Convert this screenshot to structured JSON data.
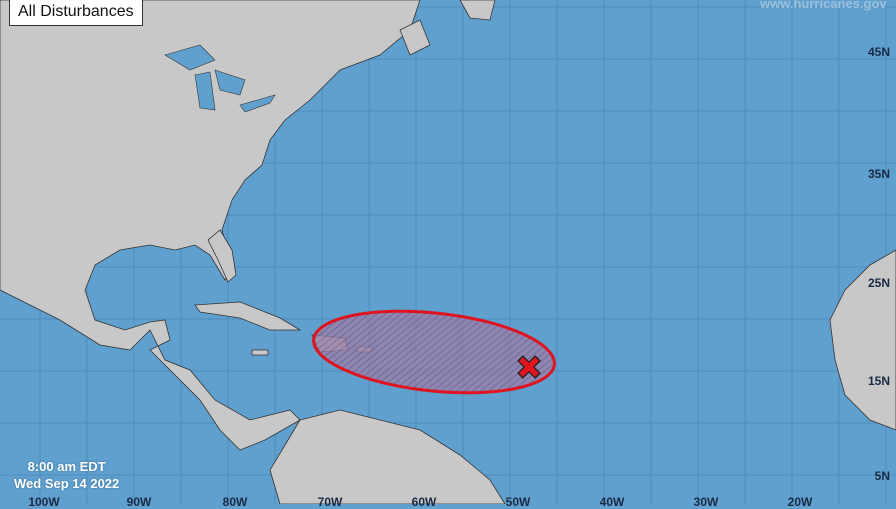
{
  "header": {
    "title": "All Disturbances"
  },
  "watermark": "www.hurricanes.gov",
  "timestamp": {
    "time": "8:00 am EDT",
    "date": "Wed Sep 14 2022"
  },
  "latitude_labels": [
    "45N",
    "35N",
    "25N",
    "15N",
    "5N"
  ],
  "longitude_labels": [
    "100W",
    "90W",
    "80W",
    "70W",
    "60W",
    "50W",
    "40W",
    "30W",
    "20W"
  ],
  "colors": {
    "ocean": "#5fa0cf",
    "land": "#c8c8c8",
    "area_outline": "#e0141e",
    "area_fill": "#b07a9a",
    "marker": "#e0141e"
  },
  "disturbance": {
    "marker_icon": "x-icon",
    "area": "hatched-outlook-area"
  }
}
